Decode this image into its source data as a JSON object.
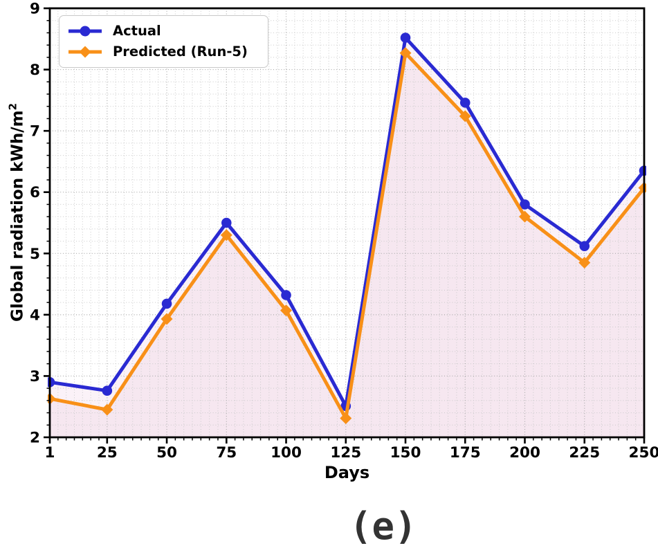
{
  "figure": {
    "caption": "(e)",
    "caption_color": "#333333",
    "background": "#ffffff"
  },
  "chart_data": {
    "type": "line",
    "x": [
      1,
      25,
      50,
      75,
      100,
      125,
      150,
      175,
      200,
      225,
      250
    ],
    "series": [
      {
        "name": "Actual",
        "color": "#2a2ad2",
        "marker": "circle",
        "values": [
          2.9,
          2.76,
          4.18,
          5.5,
          4.32,
          2.51,
          8.52,
          7.46,
          5.8,
          5.12,
          6.35
        ]
      },
      {
        "name": "Predicted (Run-5)",
        "color": "#f89018",
        "marker": "diamond",
        "values": [
          2.63,
          2.45,
          3.93,
          5.3,
          4.07,
          2.31,
          8.27,
          7.24,
          5.6,
          4.85,
          6.07
        ]
      }
    ],
    "title": "",
    "xlabel": "Days",
    "ylabel": "Global radiation kWh/m",
    "ylabel_superscript": "2",
    "xlim": [
      1,
      250
    ],
    "ylim": [
      2,
      9
    ],
    "xticks": [
      1,
      25,
      50,
      75,
      100,
      125,
      150,
      175,
      200,
      225,
      250
    ],
    "yticks": [
      2,
      3,
      4,
      5,
      6,
      7,
      8,
      9
    ],
    "x_minor_divisions": 7,
    "y_minor_step": 0.2,
    "grid": "dotted",
    "grid_major_color": "#a9a9a9",
    "grid_minor_color": "#c9c9c9",
    "area_fill_between_color": "#fbf2f8",
    "area_fill_under_color": "#f6e7f0",
    "axis_color": "#000000",
    "legend_position": "upper-left"
  }
}
